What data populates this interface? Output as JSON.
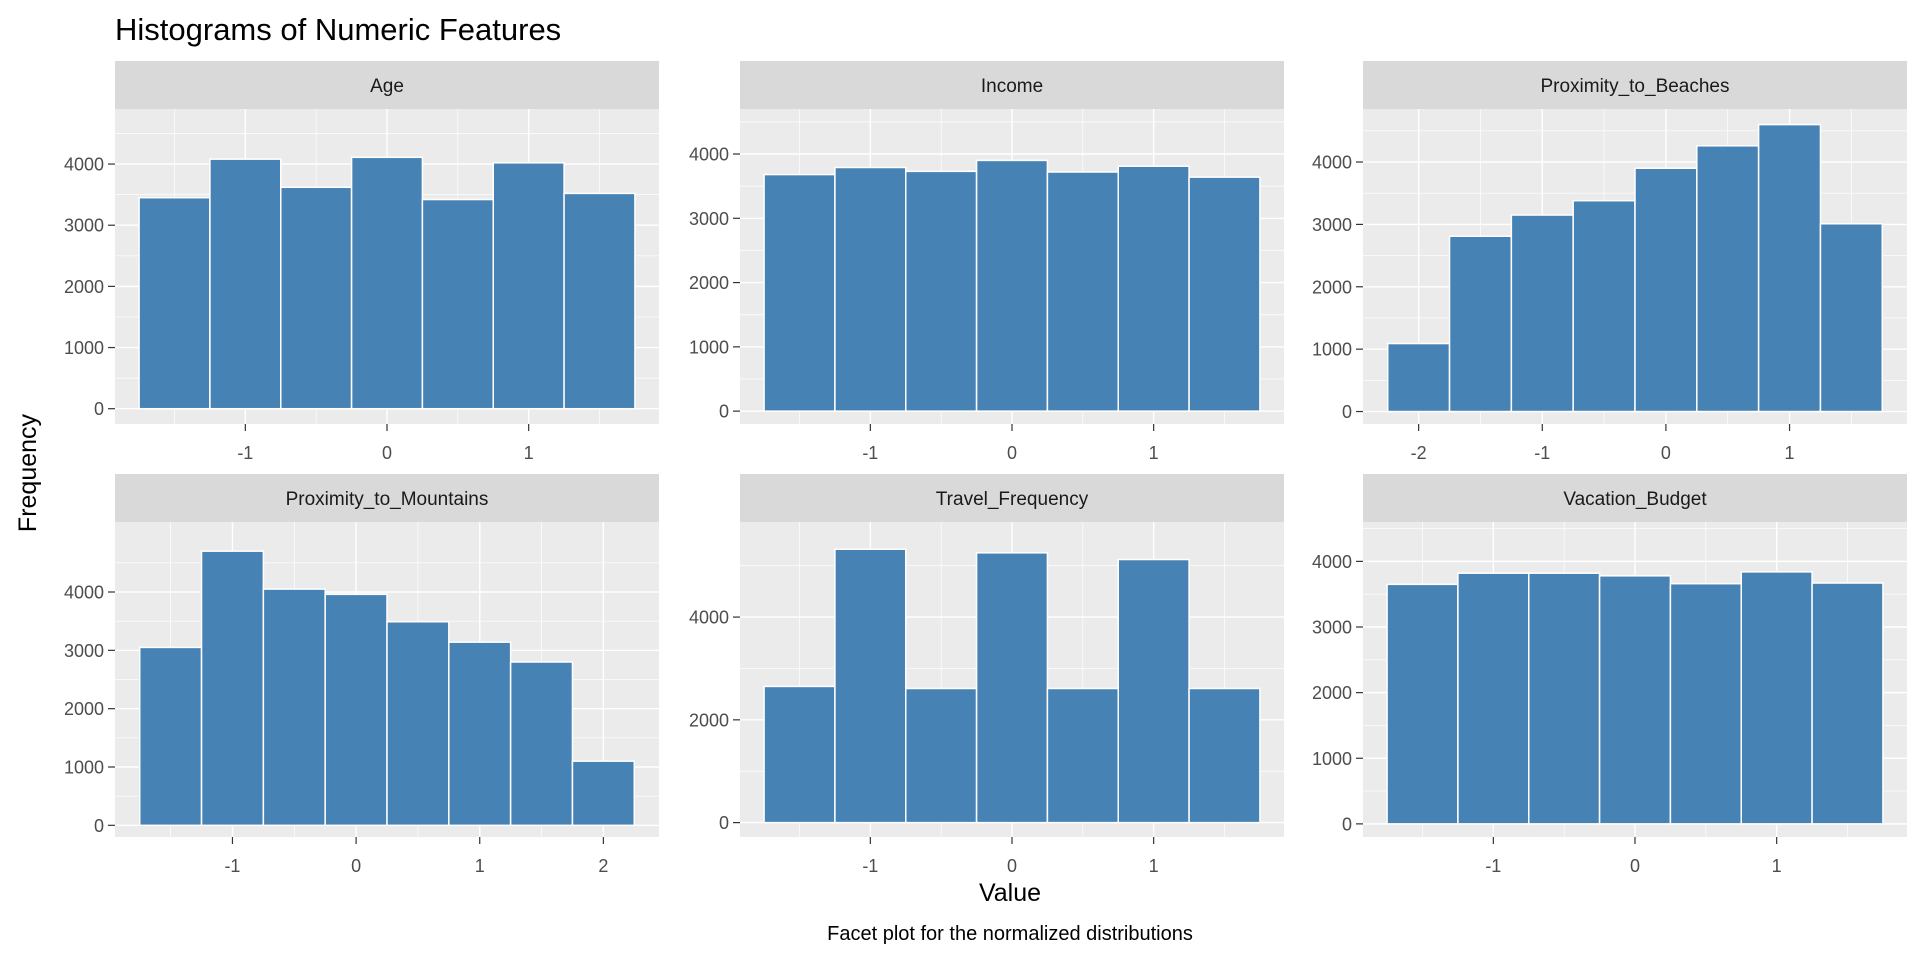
{
  "title": "Histograms of Numeric Features",
  "caption": "Facet plot for the normalized distributions",
  "xlabel": "Value",
  "ylabel": "Frequency",
  "colors": {
    "bar_fill": "#4682B4",
    "panel_bg": "#EBEBEB",
    "strip_bg": "#D9D9D9"
  },
  "chart_data": [
    {
      "type": "bar",
      "facet": "Age",
      "bin_edges": [
        -1.75,
        -1.25,
        -0.75,
        -0.25,
        0.25,
        0.75,
        1.25,
        1.75
      ],
      "values": [
        3450,
        4080,
        3620,
        4110,
        3420,
        4020,
        3520
      ],
      "xlim": [
        -1.92,
        1.92
      ],
      "ylim": [
        -250,
        4900
      ],
      "xticks": [
        -1,
        0,
        1
      ],
      "xtick_labels": [
        "-1",
        "0",
        "1"
      ],
      "yticks": [
        0,
        1000,
        2000,
        3000,
        4000
      ],
      "ytick_labels": [
        "0",
        "1000",
        "2000",
        "3000",
        "4000"
      ]
    },
    {
      "type": "bar",
      "facet": "Income",
      "bin_edges": [
        -1.75,
        -1.25,
        -0.75,
        -0.25,
        0.25,
        0.75,
        1.25,
        1.75
      ],
      "values": [
        3680,
        3790,
        3730,
        3900,
        3720,
        3810,
        3640
      ],
      "xlim": [
        -1.92,
        1.92
      ],
      "ylim": [
        -200,
        4700
      ],
      "xticks": [
        -1,
        0,
        1
      ],
      "xtick_labels": [
        "-1",
        "0",
        "1"
      ],
      "yticks": [
        0,
        1000,
        2000,
        3000,
        4000
      ],
      "ytick_labels": [
        "0",
        "1000",
        "2000",
        "3000",
        "4000"
      ]
    },
    {
      "type": "bar",
      "facet": "Proximity_to_Beaches",
      "bin_edges": [
        -2.25,
        -1.75,
        -1.25,
        -0.75,
        -0.25,
        0.25,
        0.75,
        1.25,
        1.75
      ],
      "values": [
        1090,
        2810,
        3150,
        3380,
        3900,
        4260,
        4600,
        3010
      ],
      "xlim": [
        -2.45,
        1.95
      ],
      "ylim": [
        -200,
        4850
      ],
      "xticks": [
        -2,
        -1,
        0,
        1
      ],
      "xtick_labels": [
        "-2",
        "-1",
        "0",
        "1"
      ],
      "yticks": [
        0,
        1000,
        2000,
        3000,
        4000
      ],
      "ytick_labels": [
        "0",
        "1000",
        "2000",
        "3000",
        "4000"
      ]
    },
    {
      "type": "bar",
      "facet": "Proximity_to_Mountains",
      "bin_edges": [
        -1.75,
        -1.25,
        -0.75,
        -0.25,
        0.25,
        0.75,
        1.25,
        1.75,
        2.25
      ],
      "values": [
        3050,
        4700,
        4050,
        3960,
        3490,
        3140,
        2800,
        1100
      ],
      "xlim": [
        -1.95,
        2.45
      ],
      "ylim": [
        -200,
        5200
      ],
      "xticks": [
        -1,
        0,
        1,
        2
      ],
      "xtick_labels": [
        "-1",
        "0",
        "1",
        "2"
      ],
      "yticks": [
        0,
        1000,
        2000,
        3000,
        4000
      ],
      "ytick_labels": [
        "0",
        "1000",
        "2000",
        "3000",
        "4000"
      ]
    },
    {
      "type": "bar",
      "facet": "Travel_Frequency",
      "bin_edges": [
        -1.75,
        -1.25,
        -0.75,
        -0.25,
        0.25,
        0.75,
        1.25,
        1.75
      ],
      "values": [
        2650,
        5320,
        2610,
        5250,
        2610,
        5120,
        2610
      ],
      "xlim": [
        -1.92,
        1.92
      ],
      "ylim": [
        -280,
        5850
      ],
      "xticks": [
        -1,
        0,
        1
      ],
      "xtick_labels": [
        "-1",
        "0",
        "1"
      ],
      "yticks": [
        0,
        2000,
        4000
      ],
      "ytick_labels": [
        "0",
        "2000",
        "4000"
      ]
    },
    {
      "type": "bar",
      "facet": "Vacation_Budget",
      "bin_edges": [
        -1.75,
        -1.25,
        -0.75,
        -0.25,
        0.25,
        0.75,
        1.25,
        1.75
      ],
      "values": [
        3650,
        3820,
        3820,
        3780,
        3660,
        3840,
        3670
      ],
      "xlim": [
        -1.92,
        1.92
      ],
      "ylim": [
        -200,
        4600
      ],
      "xticks": [
        -1,
        0,
        1
      ],
      "xtick_labels": [
        "-1",
        "0",
        "1"
      ],
      "yticks": [
        0,
        1000,
        2000,
        3000,
        4000
      ],
      "ytick_labels": [
        "0",
        "1000",
        "2000",
        "3000",
        "4000"
      ]
    }
  ]
}
